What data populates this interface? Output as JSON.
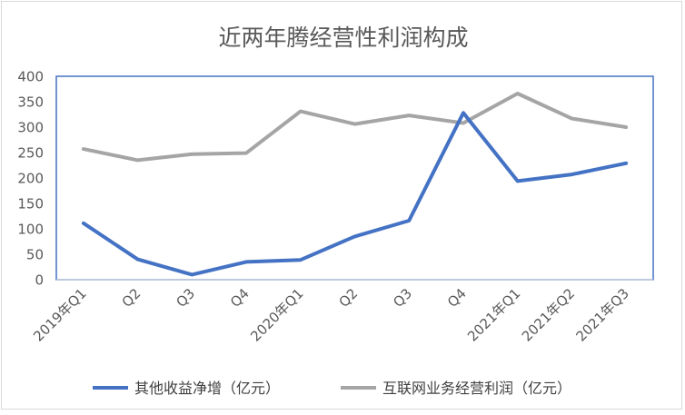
{
  "chart_data": {
    "type": "line",
    "title": "近两年腾经营性利润构成",
    "categories": [
      "2019年Q1",
      "Q2",
      "Q3",
      "Q4",
      "2020年Q1",
      "Q2",
      "Q3",
      "Q4",
      "2021年Q1",
      "2021年Q2",
      "2021年Q3"
    ],
    "ylim": [
      0,
      400
    ],
    "yticks": [
      0,
      50,
      100,
      150,
      200,
      250,
      300,
      350,
      400
    ],
    "grid": false,
    "legend_position": "bottom",
    "series": [
      {
        "name": "其他收益净增（亿元）",
        "color": "#4472c4",
        "values": [
          111,
          40,
          10,
          35,
          39,
          85,
          116,
          328,
          194,
          207,
          229
        ]
      },
      {
        "name": "互联网业务经营利润（亿元）",
        "color": "#a5a5a5",
        "values": [
          257,
          235,
          247,
          249,
          331,
          306,
          323,
          308,
          366,
          317,
          300
        ]
      }
    ]
  }
}
